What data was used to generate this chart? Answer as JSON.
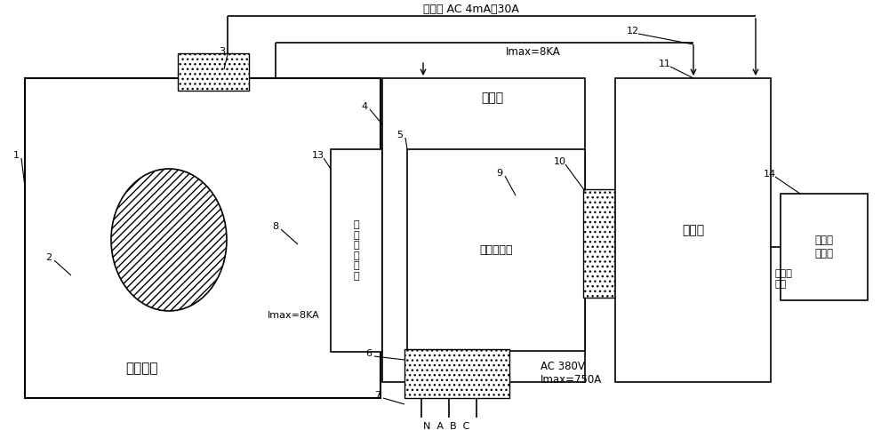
{
  "bg_color": "#ffffff",
  "line_color": "#000000",
  "labels": {
    "leak_current": "漏电流 AC 4mA～30A",
    "imax_8ka_top": "Imax=8KA",
    "imax_8ka_bottom": "Imax=8KA",
    "load_room": "负载室",
    "signal_collector": "信\n号\n采\n集\n系\n统",
    "multi_mag": "多磁路系统",
    "control_cabinet": "控制柜",
    "ethernet_signal": "以太网\n信号",
    "ethernet_switch": "以太网\n交换机",
    "radio_chamber": "电波暗室",
    "ac_380v": "AC 380V\nImax=750A",
    "nabc": "N  A  B  C",
    "num1": "1",
    "num2": "2",
    "num3": "3",
    "num4": "4",
    "num5": "5",
    "num6": "6",
    "num7": "7",
    "num8": "8",
    "num9": "9",
    "num10": "10",
    "num11": "11",
    "num12": "12",
    "num13": "13",
    "num14": "14"
  },
  "cable_count": 6
}
